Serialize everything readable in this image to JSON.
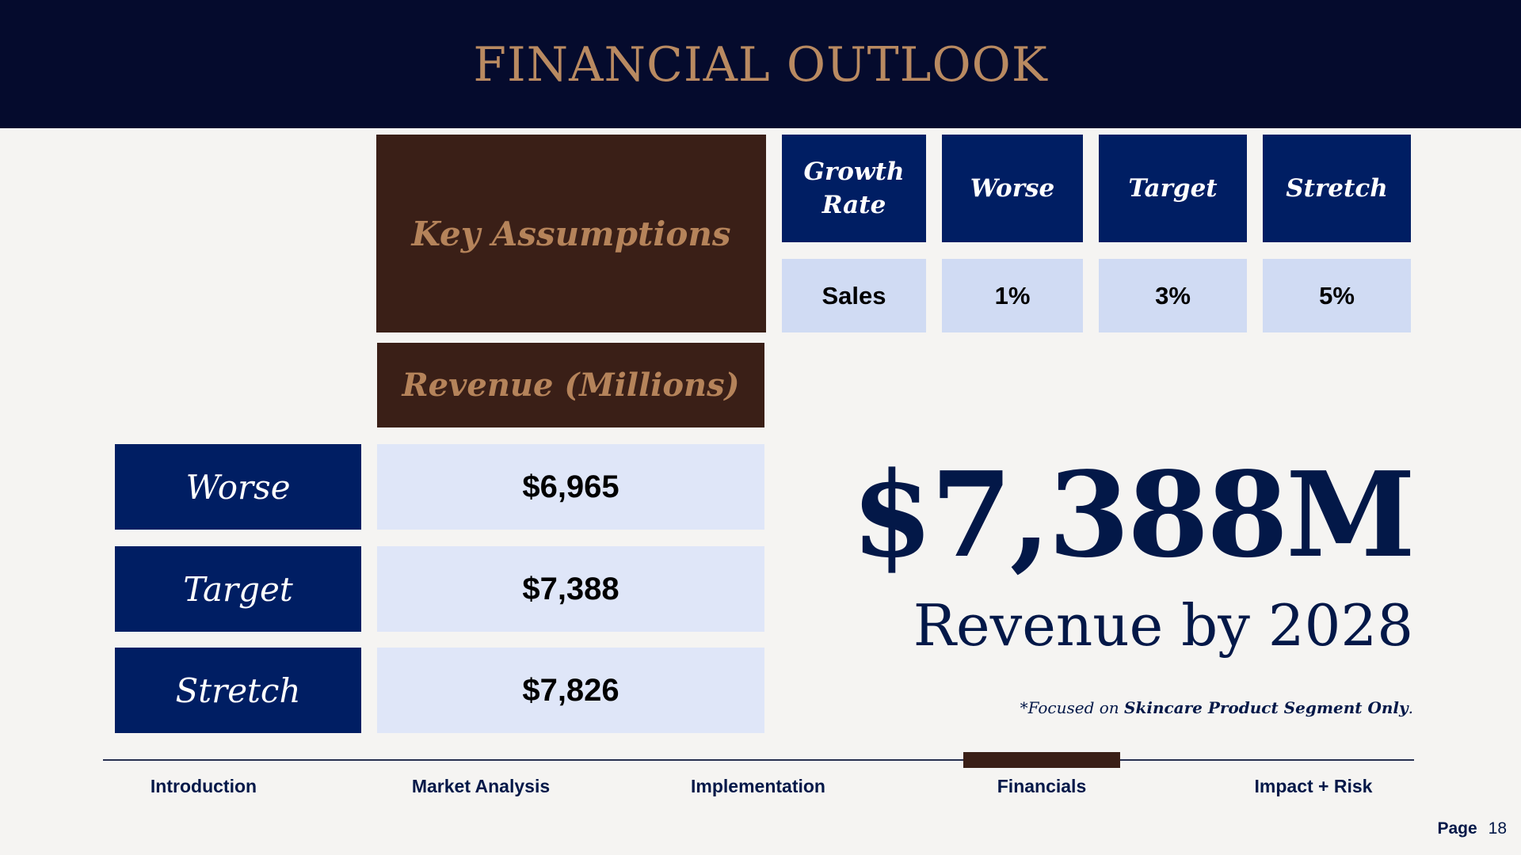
{
  "header": {
    "title": "FINANCIAL OUTLOOK"
  },
  "assumptions": {
    "title": "Key Assumptions",
    "columns": [
      "Growth Rate",
      "Worse",
      "Target",
      "Stretch"
    ],
    "row": {
      "label": "Sales",
      "values": [
        "1%",
        "3%",
        "5%"
      ]
    }
  },
  "revenue": {
    "title": "Revenue (Millions)",
    "rows": [
      {
        "label": "Worse",
        "value": "$6,965"
      },
      {
        "label": "Target",
        "value": "$7,388"
      },
      {
        "label": "Stretch",
        "value": "$7,826"
      }
    ]
  },
  "highlight": {
    "value": "$7,388M",
    "caption": "Revenue by 2028",
    "footnote_prefix": "*Focused on ",
    "footnote_bold": "Skincare Product Segment Only",
    "footnote_suffix": "."
  },
  "nav": {
    "items": [
      "Introduction",
      "Market Analysis",
      "Implementation",
      "Financials",
      "Impact + Risk"
    ],
    "active": "Financials"
  },
  "page": {
    "label": "Page",
    "number": "18"
  },
  "colors": {
    "header_bg": "#050b2d",
    "gold": "#b98a61",
    "brown": "#3a1f17",
    "navy": "#001e63",
    "light_blue": "#d0dbf3",
    "dark_text": "#031848"
  }
}
